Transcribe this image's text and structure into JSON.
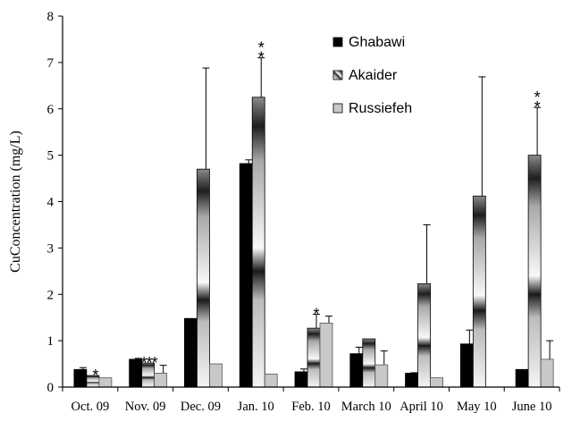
{
  "chart_data": {
    "type": "bar",
    "title": "",
    "xlabel": "",
    "ylabel": "CuConcentration (mg/L)",
    "ylim": [
      0,
      8
    ],
    "yticks": [
      "0",
      "1",
      "2",
      "3",
      "4",
      "5",
      "6",
      "7",
      "8"
    ],
    "categories": [
      "Oct. 09",
      "Nov. 09",
      "Dec. 09",
      "Jan. 10",
      "Feb. 10",
      "March 10",
      "April 10",
      "May 10",
      "June 10"
    ],
    "legend_position": "top-right",
    "series": [
      {
        "name": "Ghabawi",
        "style": "solid-black",
        "values": [
          0.38,
          0.6,
          1.48,
          4.82,
          0.33,
          0.72,
          0.3,
          0.93,
          0.38
        ],
        "errors": [
          0.04,
          0.02,
          0,
          0.08,
          0.06,
          0.14,
          0.01,
          0.3,
          0
        ],
        "stars": [
          "",
          "",
          "",
          "",
          "",
          "",
          "",
          "",
          ""
        ]
      },
      {
        "name": "Akaider",
        "style": "gradient-hatched",
        "values": [
          0.25,
          0.52,
          4.7,
          6.25,
          1.27,
          1.04,
          2.23,
          4.12,
          5.0
        ],
        "errors": [
          0,
          0,
          2.18,
          0.85,
          0.3,
          0,
          1.27,
          2.57,
          1.03
        ],
        "stars": [
          "*",
          "***",
          "",
          "**",
          "*",
          "",
          "",
          "",
          "**"
        ]
      },
      {
        "name": "Russiefeh",
        "style": "light-gray",
        "values": [
          0.2,
          0.3,
          0.5,
          0.28,
          1.38,
          0.48,
          0.2,
          0,
          0.6
        ],
        "errors": [
          0,
          0.17,
          0,
          0,
          0.15,
          0.3,
          0,
          0,
          0.4
        ],
        "stars": [
          "",
          "",
          "",
          "",
          "",
          "",
          "",
          "",
          ""
        ]
      }
    ],
    "colors": {
      "ghabawi": "#000000",
      "akaider_light": "#f4f4f4",
      "akaider_dark": "#1a1a1a",
      "russiefeh": "#c8c8c8"
    }
  }
}
